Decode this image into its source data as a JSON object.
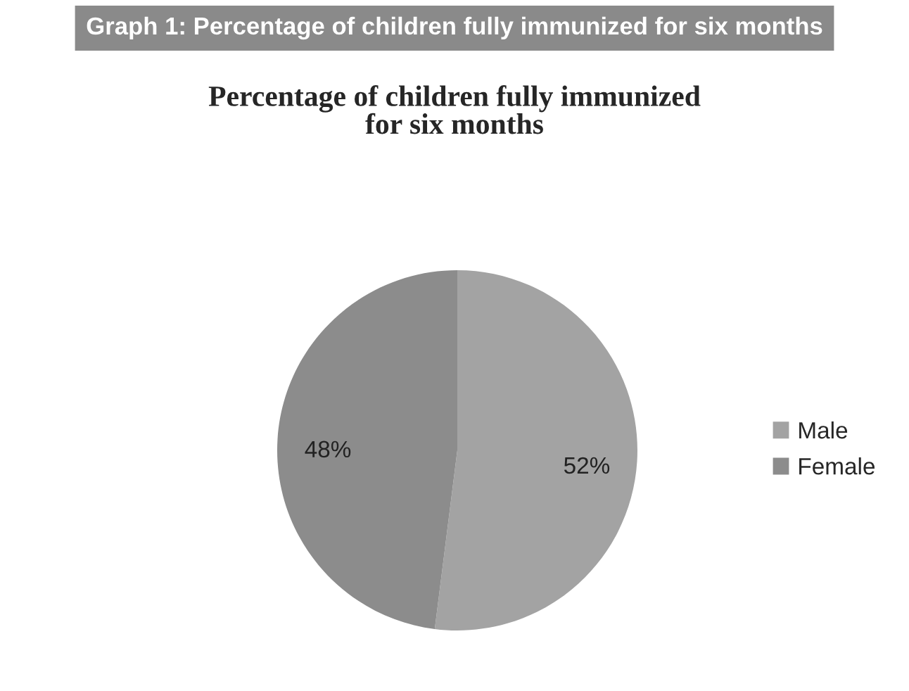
{
  "chart_data": {
    "type": "pie",
    "title": "Graph 1: Percentage of children fully immunized for six months",
    "subtitle": "Percentage of children fully immunized\nfor six months",
    "categories": [
      "Male",
      "Female"
    ],
    "values": [
      52,
      48
    ],
    "colors": [
      "#a3a3a3",
      "#8c8c8c"
    ],
    "value_labels": [
      "52%",
      "48%"
    ],
    "legend": "right"
  }
}
